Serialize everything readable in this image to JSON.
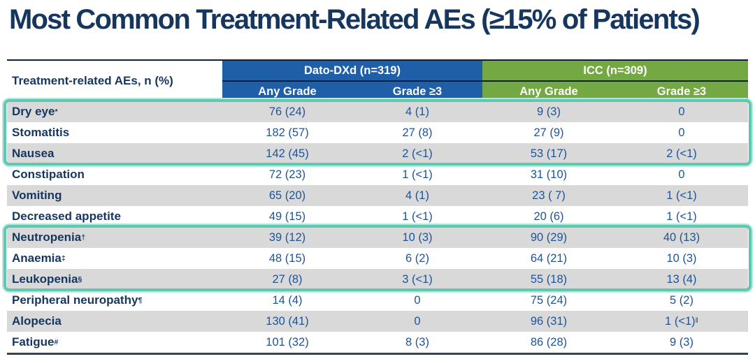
{
  "title": "Most Common Treatment-Related AEs (≥15% of Patients)",
  "table": {
    "corner_label": "Treatment-related AEs, n (%)",
    "groups": [
      {
        "name": "Dato-DXd (n=319)",
        "color": "#1E5FA8"
      },
      {
        "name": "ICC (n=309)",
        "color": "#74A843"
      }
    ],
    "subheaders": [
      "Any Grade",
      "Grade ≥3",
      "Any Grade",
      "Grade ≥3"
    ],
    "rows": [
      {
        "label": "Dry eye",
        "label_sup": "*",
        "dato_any": "76 (24)",
        "dato_g3": "4 (1)",
        "icc_any": "9 (3)",
        "icc_g3": "0"
      },
      {
        "label": "Stomatitis",
        "dato_any": "182 (57)",
        "dato_g3": "27 (8)",
        "icc_any": "27 (9)",
        "icc_g3": "0"
      },
      {
        "label": "Nausea",
        "dato_any": "142 (45)",
        "dato_g3": "2 (<1)",
        "icc_any": "53 (17)",
        "icc_g3": "2 (<1)"
      },
      {
        "label": "Constipation",
        "dato_any": "72 (23)",
        "dato_g3": "1 (<1)",
        "icc_any": "31 (10)",
        "icc_g3": "0"
      },
      {
        "label": "Vomiting",
        "dato_any": "65 (20)",
        "dato_g3": "4 (1)",
        "icc_any": "23 ( 7)",
        "icc_g3": "1 (<1)"
      },
      {
        "label": "Decreased appetite",
        "dato_any": "49 (15)",
        "dato_g3": "1 (<1)",
        "icc_any": "20 (6)",
        "icc_g3": "1 (<1)"
      },
      {
        "label": "Neutropenia",
        "label_sup": "†",
        "dato_any": "39 (12)",
        "dato_g3": "10 (3)",
        "icc_any": "90 (29)",
        "icc_g3": "40 (13)"
      },
      {
        "label": "Anaemia",
        "label_sup": "‡",
        "dato_any": "48 (15)",
        "dato_g3": "6 (2)",
        "icc_any": "64 (21)",
        "icc_g3": "10 (3)"
      },
      {
        "label": "Leukopenia",
        "label_sup": "§",
        "dato_any": "27 (8)",
        "dato_g3": "3 (<1)",
        "icc_any": "55 (18)",
        "icc_g3": "13 (4)"
      },
      {
        "label": "Peripheral neuropathy",
        "label_sup": "¶",
        "dato_any": "14 (4)",
        "dato_g3": "0",
        "icc_any": "75 (24)",
        "icc_g3": "5 (2)"
      },
      {
        "label": "Alopecia",
        "dato_any": "130 (41)",
        "dato_g3": "0",
        "icc_any": "96 (31)",
        "icc_g3": "1 (<1)",
        "icc_g3_sup": "‖"
      },
      {
        "label": "Fatigue",
        "label_sup": "#",
        "dato_any": "101 (32)",
        "dato_g3": "8 (3)",
        "icc_any": "86 (28)",
        "icc_g3": "9 (3)"
      }
    ]
  },
  "highlights": {
    "group1_rows": [
      "Dry eye",
      "Stomatitis",
      "Nausea"
    ],
    "group2_rows": [
      "Neutropenia",
      "Anaemia",
      "Leukopenia"
    ],
    "color": "#5DC9B1"
  },
  "colors": {
    "title_navy": "#17365D",
    "header_blue": "#1E5FA8",
    "header_green": "#74A843",
    "row_gray": "#D9D9D9",
    "value_blue": "#1F5396",
    "highlight_teal": "#5DC9B1"
  },
  "chart_data": {
    "type": "table",
    "title": "Most Common Treatment-Related AEs (≥15% of Patients)",
    "columns": [
      "Treatment-related AEs, n (%)",
      "Dato-DXd (n=319) Any Grade",
      "Dato-DXd (n=319) Grade ≥3",
      "ICC (n=309) Any Grade",
      "ICC (n=309) Grade ≥3"
    ],
    "rows": [
      [
        "Dry eye*",
        "76 (24)",
        "4 (1)",
        "9 (3)",
        "0"
      ],
      [
        "Stomatitis",
        "182 (57)",
        "27 (8)",
        "27 (9)",
        "0"
      ],
      [
        "Nausea",
        "142 (45)",
        "2 (<1)",
        "53 (17)",
        "2 (<1)"
      ],
      [
        "Constipation",
        "72 (23)",
        "1 (<1)",
        "31 (10)",
        "0"
      ],
      [
        "Vomiting",
        "65 (20)",
        "4 (1)",
        "23 ( 7)",
        "1 (<1)"
      ],
      [
        "Decreased appetite",
        "49 (15)",
        "1 (<1)",
        "20 (6)",
        "1 (<1)"
      ],
      [
        "Neutropenia†",
        "39 (12)",
        "10 (3)",
        "90 (29)",
        "40 (13)"
      ],
      [
        "Anaemia‡",
        "48 (15)",
        "6 (2)",
        "64 (21)",
        "10 (3)"
      ],
      [
        "Leukopenia§",
        "27 (8)",
        "3 (<1)",
        "55 (18)",
        "13 (4)"
      ],
      [
        "Peripheral neuropathy¶",
        "14 (4)",
        "0",
        "75 (24)",
        "5 (2)"
      ],
      [
        "Alopecia",
        "130 (41)",
        "0",
        "96 (31)",
        "1 (<1)‖"
      ],
      [
        "Fatigue#",
        "101 (32)",
        "8 (3)",
        "86 (28)",
        "9 (3)"
      ]
    ]
  }
}
